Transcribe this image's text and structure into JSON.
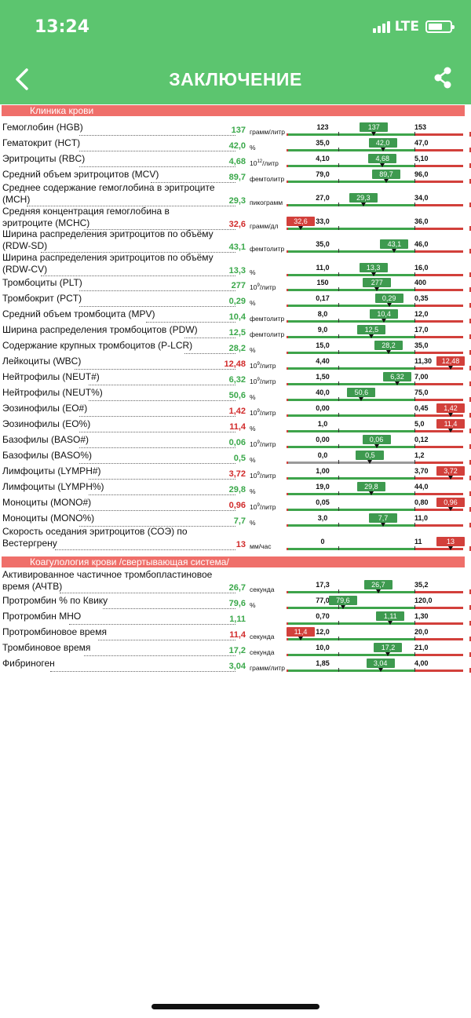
{
  "status_bar": {
    "time": "13:24",
    "network": "LTE"
  },
  "header": {
    "title": "ЗАКЛЮЧЕНИЕ"
  },
  "colors": {
    "header_green": "#5cc56f",
    "section_red": "#ef6f6a",
    "ok_green": "#3e9a4f",
    "bad_red": "#d2403b"
  },
  "sections": [
    {
      "title": "Клиника крови",
      "rows": [
        {
          "label": [
            "Гемоглобин (HGB)"
          ],
          "value": "137",
          "unit": "грамм/литр",
          "status": "ok",
          "low": "123",
          "high": "153",
          "badge": "137"
        },
        {
          "label": [
            "Гематокрит (HCT)"
          ],
          "value": "42,0",
          "unit": "%",
          "status": "ok",
          "low": "35,0",
          "high": "47,0",
          "badge": "42,0"
        },
        {
          "label": [
            "Эритроциты (RBC)"
          ],
          "value": "4,68",
          "unit": "10^12/литр",
          "status": "ok",
          "low": "4,10",
          "high": "5,10",
          "badge": "4,68"
        },
        {
          "label": [
            "Средний объем эритроцитов (MCV)"
          ],
          "value": "89,7",
          "unit": "фемтолитр",
          "status": "ok",
          "low": "79,0",
          "high": "96,0",
          "badge": "89,7"
        },
        {
          "label": [
            "Среднее содержание гемоглобина в эритроците",
            "(MCH)"
          ],
          "value": "29,3",
          "unit": "пикограмм",
          "status": "ok",
          "low": "27,0",
          "high": "34,0",
          "badge": "29,3"
        },
        {
          "label": [
            "Средняя концентрация гемоглобина в",
            "эритроците (MCHC)"
          ],
          "value": "32,6",
          "unit": "грамм/дл",
          "status": "low",
          "low": "33,0",
          "high": "36,0",
          "badge": "32,6"
        },
        {
          "label": [
            "Ширина распределения эритроцитов по объёму",
            "(RDW-SD)"
          ],
          "value": "43,1",
          "unit": "фемтолитр",
          "status": "ok",
          "low": "35,0",
          "high": "46,0",
          "badge": "43,1"
        },
        {
          "label": [
            "Ширина распределения эритроцитов по объёму",
            "(RDW-CV)"
          ],
          "value": "13,3",
          "unit": "%",
          "status": "ok",
          "low": "11,0",
          "high": "16,0",
          "badge": "13,3"
        },
        {
          "label": [
            "Тромбоциты (PLT)"
          ],
          "value": "277",
          "unit": "10^9/литр",
          "status": "ok",
          "low": "150",
          "high": "400",
          "badge": "277"
        },
        {
          "label": [
            "Тромбокрит (PCT)"
          ],
          "value": "0,29",
          "unit": "%",
          "status": "ok",
          "low": "0,17",
          "high": "0,35",
          "badge": "0,29"
        },
        {
          "label": [
            "Средний объем тромбоцита (MPV)"
          ],
          "value": "10,4",
          "unit": "фемтолитр",
          "status": "ok",
          "low": "8,0",
          "high": "12,0",
          "badge": "10,4"
        },
        {
          "label": [
            "Ширина распределения тромбоцитов (PDW)"
          ],
          "value": "12,5",
          "unit": "фемтолитр",
          "status": "ok",
          "low": "9,0",
          "high": "17,0",
          "badge": "12,5"
        },
        {
          "label": [
            "Содержание крупных тромбоцитов (P-LCR)"
          ],
          "value": "28,2",
          "unit": "%",
          "status": "ok",
          "low": "15,0",
          "high": "35,0",
          "badge": "28,2"
        },
        {
          "label": [
            "Лейкоциты (WBC)"
          ],
          "value": "12,48",
          "unit": "10^9/литр",
          "status": "high",
          "low": "4,40",
          "high": "11,30",
          "badge": "12,48"
        },
        {
          "label": [
            "Нейтрофилы (NEUT#)"
          ],
          "value": "6,32",
          "unit": "10^9/литр",
          "status": "ok",
          "low": "1,50",
          "high": "7,00",
          "badge": "6,32"
        },
        {
          "label": [
            "Нейтрофилы (NEUT%)"
          ],
          "value": "50,6",
          "unit": "%",
          "status": "ok",
          "low": "40,0",
          "high": "75,0",
          "badge": "50,6"
        },
        {
          "label": [
            "Эозинофилы (EO#)"
          ],
          "value": "1,42",
          "unit": "10^9/литр",
          "status": "high",
          "low": "0,00",
          "high": "0,45",
          "badge": "1,42"
        },
        {
          "label": [
            "Эозинофилы (EO%)"
          ],
          "value": "11,4",
          "unit": "%",
          "status": "high",
          "low": "1,0",
          "high": "5,0",
          "badge": "11,4"
        },
        {
          "label": [
            "Базофилы (BASO#)"
          ],
          "value": "0,06",
          "unit": "10^9/литр",
          "status": "ok",
          "low": "0,00",
          "high": "0,12",
          "badge": "0,06"
        },
        {
          "label": [
            "Базофилы (BASO%)"
          ],
          "value": "0,5",
          "unit": "%",
          "status": "ok",
          "low": "0,0",
          "high": "1,2",
          "badge": "0,5"
        },
        {
          "label": [
            "Лимфоциты (LYMPH#)"
          ],
          "value": "3,72",
          "unit": "10^9/литр",
          "status": "high",
          "low": "1,00",
          "high": "3,70",
          "badge": "3,72"
        },
        {
          "label": [
            "Лимфоциты (LYMPH%)"
          ],
          "value": "29,8",
          "unit": "%",
          "status": "ok",
          "low": "19,0",
          "high": "44,0",
          "badge": "29,8"
        },
        {
          "label": [
            "Моноциты (MONO#)"
          ],
          "value": "0,96",
          "unit": "10^9/литр",
          "status": "high",
          "low": "0,05",
          "high": "0,80",
          "badge": "0,96"
        },
        {
          "label": [
            "Моноциты (MONO%)"
          ],
          "value": "7,7",
          "unit": "%",
          "status": "ok",
          "low": "3,0",
          "high": "11,0",
          "badge": "7,7"
        },
        {
          "label": [
            "Скорость оседания эритроцитов (СОЭ) по",
            "Вестергрену"
          ],
          "value": "13",
          "unit": "мм/час",
          "status": "high",
          "low": "0",
          "high": "11",
          "badge": "13"
        }
      ]
    },
    {
      "title": "Коагулология крови /свертывающая система/",
      "rows": [
        {
          "label": [
            "Активированное частичное тромбопластиновое",
            "время (АЧТВ)"
          ],
          "value": "26,7",
          "unit": "секунда",
          "status": "ok",
          "low": "17,3",
          "high": "35,2",
          "badge": "26,7"
        },
        {
          "label": [
            "Протромбин % по Квику"
          ],
          "value": "79,6",
          "unit": "%",
          "status": "ok",
          "low": "77,0",
          "high": "120,0",
          "badge": "79,6"
        },
        {
          "label": [
            "Протромбин МНО"
          ],
          "value": "1,11",
          "unit": "",
          "status": "ok",
          "low": "0,70",
          "high": "1,30",
          "badge": "1,11"
        },
        {
          "label": [
            "Протромбиновое время"
          ],
          "value": "11,4",
          "unit": "секунда",
          "status": "low",
          "low": "12,0",
          "high": "20,0",
          "badge": "11,4"
        },
        {
          "label": [
            "Тромбиновое время"
          ],
          "value": "17,2",
          "unit": "секунда",
          "status": "ok",
          "low": "10,0",
          "high": "21,0",
          "badge": "17,2"
        },
        {
          "label": [
            "Фибриноген"
          ],
          "value": "3,04",
          "unit": "грамм/литр",
          "status": "ok",
          "low": "1,85",
          "high": "4,00",
          "badge": "3,04"
        }
      ]
    }
  ]
}
